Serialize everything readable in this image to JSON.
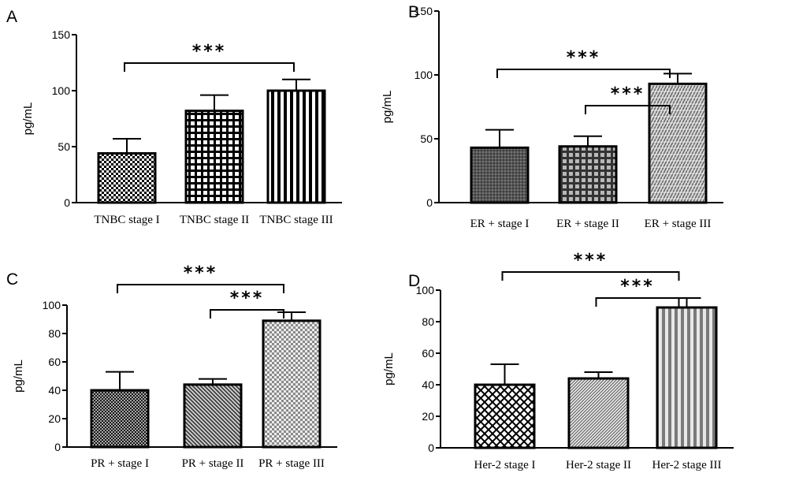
{
  "chart_data": [
    {
      "panel": "A",
      "type": "bar",
      "ylabel": "pg/mL",
      "categories": [
        "TNBC stage I",
        "TNBC stage II",
        "TNBC stage III"
      ],
      "values": [
        44,
        82,
        100
      ],
      "errors": [
        13,
        14,
        10
      ],
      "ylim": [
        0,
        150
      ],
      "yticks": [
        "0",
        "50",
        "100",
        "150"
      ],
      "patterns": [
        "checker-fine",
        "grid",
        "vstripes-bold"
      ],
      "significance": [
        {
          "from": 0,
          "to": 2,
          "label": "***"
        }
      ]
    },
    {
      "panel": "B",
      "type": "bar",
      "ylabel": "pg/mL",
      "categories": [
        "ER + stage I",
        "ER + stage II",
        "ER + stage III"
      ],
      "values": [
        43,
        44,
        93
      ],
      "errors": [
        14,
        8,
        8
      ],
      "ylim": [
        0,
        150
      ],
      "yticks": [
        "0",
        "50",
        "100",
        "150"
      ],
      "patterns": [
        "dots-dark",
        "grid-gray",
        "herringbone-gray"
      ],
      "significance": [
        {
          "from": 0,
          "to": 2,
          "label": "***"
        },
        {
          "from": 1,
          "to": 2,
          "label": "***"
        }
      ]
    },
    {
      "panel": "C",
      "type": "bar",
      "ylabel": "pg/mL",
      "categories": [
        "PR + stage I",
        "PR + stage II",
        "PR + stage III"
      ],
      "values": [
        40,
        44,
        89
      ],
      "errors": [
        13,
        4,
        6
      ],
      "ylim": [
        0,
        100
      ],
      "yticks": [
        "0",
        "20",
        "40",
        "60",
        "80",
        "100"
      ],
      "patterns": [
        "crosshatch-dark",
        "diag-gray",
        "checker-light"
      ],
      "significance": [
        {
          "from": 0,
          "to": 2,
          "label": "***"
        },
        {
          "from": 1,
          "to": 2,
          "label": "***"
        }
      ]
    },
    {
      "panel": "D",
      "type": "bar",
      "ylabel": "pg/mL",
      "categories": [
        "Her-2 stage I",
        "Her-2 stage II",
        "Her-2 stage III"
      ],
      "values": [
        40,
        44,
        89
      ],
      "errors": [
        13,
        4,
        6
      ],
      "ylim": [
        0,
        100
      ],
      "yticks": [
        "0",
        "20",
        "40",
        "60",
        "80",
        "100"
      ],
      "patterns": [
        "diamonds",
        "fine-diag",
        "vstripes-gray"
      ],
      "significance": [
        {
          "from": 0,
          "to": 2,
          "label": "***"
        },
        {
          "from": 1,
          "to": 2,
          "label": "***"
        }
      ]
    }
  ],
  "colors": {
    "ink": "#000000",
    "dark_gray": "#404040",
    "mid_gray": "#808080",
    "light_gray": "#b0b0b0",
    "background": "#ffffff"
  }
}
